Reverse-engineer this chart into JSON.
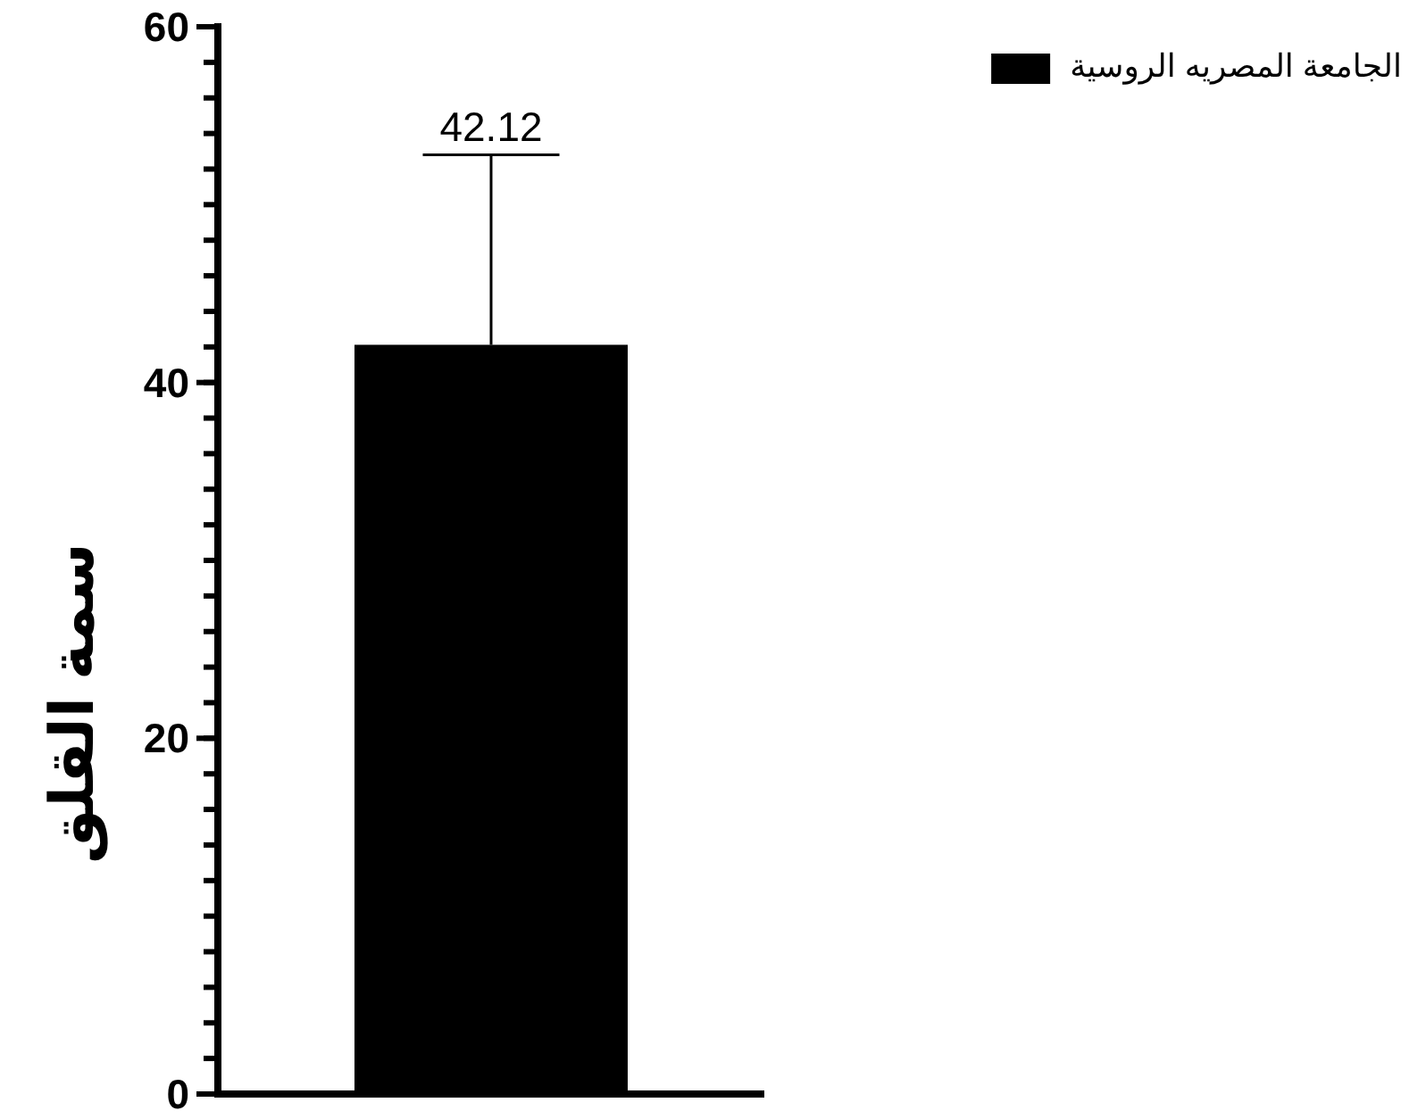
{
  "chart_data": {
    "type": "bar",
    "categories": [
      null
    ],
    "ylabel": "سمة القلق",
    "series": [
      {
        "name": "الجامعة المصريه الروسية",
        "color": "#000000",
        "values": [
          42.12
        ],
        "errors": [
          [
            42.12,
            52.8
          ]
        ]
      }
    ],
    "ylim": [
      0,
      60
    ],
    "yticks": [
      0,
      20,
      40,
      60
    ],
    "legend": "top right",
    "annotations": [
      {
        "text": "42.12",
        "y": 52.8
      }
    ]
  }
}
